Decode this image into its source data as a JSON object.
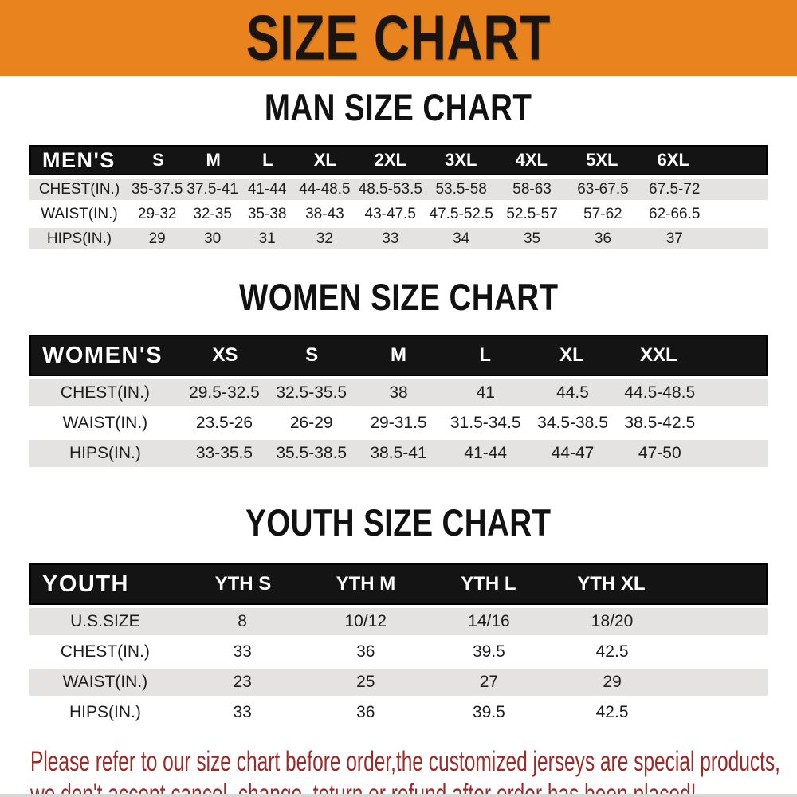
{
  "banner": {
    "title": "SIZE CHART"
  },
  "men": {
    "heading": "MAN SIZE CHART",
    "table": {
      "header": [
        "MEN'S",
        "S",
        "M",
        "L",
        "XL",
        "2XL",
        "3XL",
        "4XL",
        "5XL",
        "6XL"
      ],
      "rows": [
        {
          "label": "CHEST(IN.)",
          "values": [
            "35-37.5",
            "37.5-41",
            "41-44",
            "44-48.5",
            "48.5-53.5",
            "53.5-58",
            "58-63",
            "63-67.5",
            "67.5-72"
          ]
        },
        {
          "label": "WAIST(IN.)",
          "values": [
            "29-32",
            "32-35",
            "35-38",
            "38-43",
            "43-47.5",
            "47.5-52.5",
            "52.5-57",
            "57-62",
            "62-66.5"
          ]
        },
        {
          "label": "HIPS(IN.)",
          "values": [
            "29",
            "30",
            "31",
            "32",
            "33",
            "34",
            "35",
            "36",
            "37"
          ]
        }
      ]
    }
  },
  "women": {
    "heading": "WOMEN SIZE CHART",
    "table": {
      "header": [
        "WOMEN'S",
        "XS",
        "S",
        "M",
        "L",
        "XL",
        "XXL"
      ],
      "rows": [
        {
          "label": "CHEST(IN.)",
          "values": [
            "29.5-32.5",
            "32.5-35.5",
            "38",
            "41",
            "44.5",
            "44.5-48.5"
          ]
        },
        {
          "label": "WAIST(IN.)",
          "values": [
            "23.5-26",
            "26-29",
            "29-31.5",
            "31.5-34.5",
            "34.5-38.5",
            "38.5-42.5"
          ]
        },
        {
          "label": "HIPS(IN.)",
          "values": [
            "33-35.5",
            "35.5-38.5",
            "38.5-41",
            "41-44",
            "44-47",
            "47-50"
          ]
        }
      ]
    }
  },
  "youth": {
    "heading": "YOUTH SIZE CHART",
    "table": {
      "header": [
        "YOUTH",
        "YTH S",
        "YTH M",
        "YTH L",
        "YTH XL"
      ],
      "rows": [
        {
          "label": "U.S.SIZE",
          "values": [
            "8",
            "10/12",
            "14/16",
            "18/20"
          ]
        },
        {
          "label": "CHEST(IN.)",
          "values": [
            "33",
            "36",
            "39.5",
            "42.5"
          ]
        },
        {
          "label": "WAIST(IN.)",
          "values": [
            "23",
            "25",
            "27",
            "29"
          ]
        },
        {
          "label": "HIPS(IN.)",
          "values": [
            "33",
            "36",
            "39.5",
            "42.5"
          ]
        }
      ]
    }
  },
  "notice": {
    "line1": "Please refer to our size chart before order,the customized jerseys are special products,",
    "line2": "we don't accept cancel, change, teturn or refund after order has been placed!"
  },
  "colors": {
    "banner_bg": "#E8831E",
    "table_header_bg": "#141414",
    "row_stripe": "#E4E3E1",
    "notice_red": "#9C2B28"
  }
}
